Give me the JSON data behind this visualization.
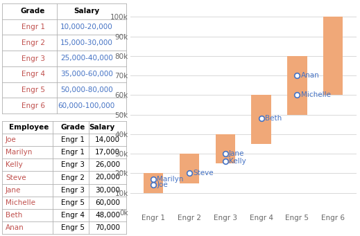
{
  "grades": [
    "Engr 1",
    "Engr 2",
    "Engr 3",
    "Engr 4",
    "Engr 5",
    "Engr 6"
  ],
  "salary_min": [
    10000,
    15000,
    25000,
    35000,
    50000,
    60000
  ],
  "salary_max": [
    20000,
    30000,
    40000,
    60000,
    80000,
    100000
  ],
  "employees": [
    {
      "name": "Joe",
      "grade": "Engr 1",
      "salary": 14000
    },
    {
      "name": "Marilyn",
      "grade": "Engr 1",
      "salary": 17000
    },
    {
      "name": "Steve",
      "grade": "Engr 2",
      "salary": 20000
    },
    {
      "name": "Kelly",
      "grade": "Engr 3",
      "salary": 26000
    },
    {
      "name": "Jane",
      "grade": "Engr 3",
      "salary": 30000
    },
    {
      "name": "Beth",
      "grade": "Engr 4",
      "salary": 48000
    },
    {
      "name": "Michelle",
      "grade": "Engr 5",
      "salary": 60000
    },
    {
      "name": "Anan",
      "grade": "Engr 5",
      "salary": 70000
    }
  ],
  "table1": [
    [
      "Grade",
      "Salary"
    ],
    [
      "Engr 1",
      "10,000-20,000"
    ],
    [
      "Engr 2",
      "15,000-30,000"
    ],
    [
      "Engr 3",
      "25,000-40,000"
    ],
    [
      "Engr 4",
      "35,000-60,000"
    ],
    [
      "Engr 5",
      "50,000-80,000"
    ],
    [
      "Engr 6",
      "60,000-100,000"
    ]
  ],
  "table2": [
    [
      "Employee",
      "Grade",
      "Salary"
    ],
    [
      "Joe",
      "Engr 1",
      "14,000"
    ],
    [
      "Marilyn",
      "Engr 1",
      "17,000"
    ],
    [
      "Kelly",
      "Engr 3",
      "26,000"
    ],
    [
      "Steve",
      "Engr 2",
      "20,000"
    ],
    [
      "Jane",
      "Engr 3",
      "30,000"
    ],
    [
      "Michelle",
      "Engr 5",
      "60,000"
    ],
    [
      "Beth",
      "Engr 4",
      "48,000"
    ],
    [
      "Anan",
      "Engr 5",
      "70,000"
    ]
  ],
  "bar_color": "#f0a878",
  "dot_edge_color": "#4472c4",
  "dot_face_color": "#ffffff",
  "label_color": "#4472c4",
  "grid_color": "#d8d8d8",
  "tick_color": "#666666",
  "t1_col0_color": "#c0504d",
  "t1_col1_color": "#4472c4",
  "t1_header_color": "#000000",
  "t2_col0_color": "#c0504d",
  "t2_col1_color": "#000000",
  "t2_col2_color": "#000000",
  "t2_header_color": "#000000",
  "table_line_color": "#b0b0b0",
  "ytick_labels": [
    "0k",
    "10k",
    "20k",
    "30k",
    "40k",
    "50k",
    "60k",
    "70k",
    "80k",
    "90k",
    "100k"
  ],
  "ytick_values": [
    0,
    10000,
    20000,
    30000,
    40000,
    50000,
    60000,
    70000,
    80000,
    90000,
    100000
  ],
  "ymax": 105000,
  "bar_width": 0.55,
  "label_fontsize": 7.5,
  "tick_fontsize": 7.5,
  "table_fontsize": 7.5
}
